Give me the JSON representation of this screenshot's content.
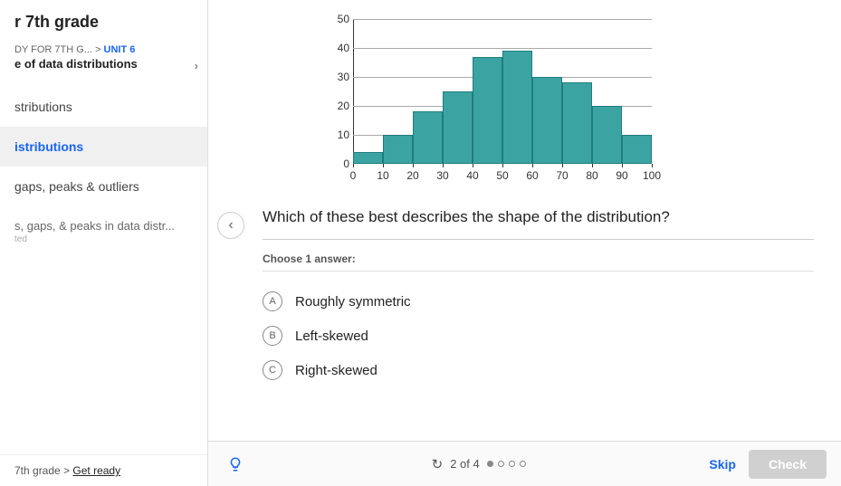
{
  "sidebar": {
    "course_title": "r 7th grade",
    "crumb_course": "DY FOR 7TH G...",
    "crumb_sep": ">",
    "crumb_unit": "UNIT 6",
    "lesson_title": "e of data distributions",
    "items": [
      {
        "label": "stributions",
        "active": false
      },
      {
        "label": "istributions",
        "active": true
      },
      {
        "label": "gaps, peaks & outliers",
        "active": false
      },
      {
        "label": "s, gaps, & peaks in data distr...",
        "sub": "ted",
        "active": false
      }
    ],
    "bottom_crumb_pre": "7th grade > ",
    "bottom_crumb_link": "Get ready"
  },
  "chart": {
    "type": "histogram",
    "y_ticks": [
      0,
      10,
      20,
      30,
      40,
      50
    ],
    "x_ticks": [
      0,
      10,
      20,
      30,
      40,
      50,
      60,
      70,
      80,
      90,
      100
    ],
    "ylim": [
      0,
      50
    ],
    "xlim": [
      0,
      100
    ],
    "bars": [
      {
        "x0": 0,
        "x1": 10,
        "height": 4
      },
      {
        "x0": 10,
        "x1": 20,
        "height": 10
      },
      {
        "x0": 20,
        "x1": 30,
        "height": 18
      },
      {
        "x0": 30,
        "x1": 40,
        "height": 25
      },
      {
        "x0": 40,
        "x1": 50,
        "height": 37
      },
      {
        "x0": 50,
        "x1": 60,
        "height": 39
      },
      {
        "x0": 60,
        "x1": 70,
        "height": 30
      },
      {
        "x0": 70,
        "x1": 80,
        "height": 28
      },
      {
        "x0": 80,
        "x1": 90,
        "height": 20
      },
      {
        "x0": 90,
        "x1": 100,
        "height": 10
      }
    ],
    "bar_fill": "#3ca3a3",
    "bar_stroke": "#1e7d7d",
    "grid_color": "#aaaaaa",
    "axis_color": "#333333",
    "label_fontsize": 12,
    "background": "#ffffff"
  },
  "question": {
    "text": "Which of these best describes the shape of the distribution?",
    "instruction": "Choose 1 answer:",
    "choices": [
      {
        "letter": "A",
        "label": "Roughly symmetric"
      },
      {
        "letter": "B",
        "label": "Left-skewed"
      },
      {
        "letter": "C",
        "label": "Right-skewed"
      }
    ]
  },
  "footer": {
    "position_text": "2 of 4",
    "total_dots": 4,
    "filled_dot_index": 0,
    "skip_label": "Skip",
    "check_label": "Check"
  }
}
